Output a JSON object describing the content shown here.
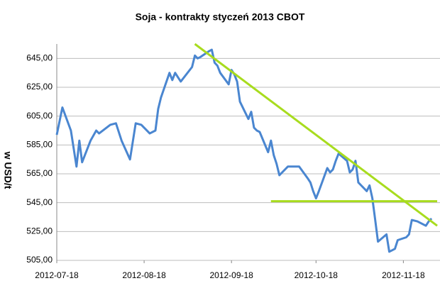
{
  "chart_data": {
    "type": "line",
    "title": "Soja - kontrakty styczeń 2013 CBOT",
    "y_label": "w USD/t",
    "x": [
      "2012-07-18",
      "2012-07-20",
      "2012-07-23",
      "2012-07-25",
      "2012-07-26",
      "2012-07-27",
      "2012-07-30",
      "2012-08-01",
      "2012-08-02",
      "2012-08-06",
      "2012-08-08",
      "2012-08-10",
      "2012-08-13",
      "2012-08-15",
      "2012-08-17",
      "2012-08-20",
      "2012-08-22",
      "2012-08-23",
      "2012-08-24",
      "2012-08-27",
      "2012-08-28",
      "2012-08-29",
      "2012-08-30",
      "2012-08-31",
      "2012-09-04",
      "2012-09-05",
      "2012-09-06",
      "2012-09-07",
      "2012-09-10",
      "2012-09-11",
      "2012-09-12",
      "2012-09-13",
      "2012-09-14",
      "2012-09-17",
      "2012-09-18",
      "2012-09-19",
      "2012-09-20",
      "2012-09-21",
      "2012-09-24",
      "2012-09-25",
      "2012-09-26",
      "2012-09-27",
      "2012-09-28",
      "2012-10-01",
      "2012-10-02",
      "2012-10-03",
      "2012-10-04",
      "2012-10-05",
      "2012-10-08",
      "2012-10-10",
      "2012-10-12",
      "2012-10-15",
      "2012-10-16",
      "2012-10-17",
      "2012-10-18",
      "2012-10-19",
      "2012-10-22",
      "2012-10-23",
      "2012-10-24",
      "2012-10-25",
      "2012-10-26",
      "2012-10-29",
      "2012-10-30",
      "2012-10-31",
      "2012-11-01",
      "2012-11-02",
      "2012-11-05",
      "2012-11-06",
      "2012-11-07",
      "2012-11-08",
      "2012-11-09",
      "2012-11-12",
      "2012-11-13",
      "2012-11-14",
      "2012-11-15",
      "2012-11-16",
      "2012-11-19",
      "2012-11-20",
      "2012-11-21",
      "2012-11-23",
      "2012-11-26",
      "2012-11-27",
      "2012-11-28"
    ],
    "series": [
      {
        "name": "Soja",
        "color": "#4a86d0",
        "values": [
          592,
          611,
          595,
          570,
          588,
          573,
          588,
          595,
          593,
          599,
          600,
          588,
          575,
          600,
          599,
          593,
          595,
          610,
          618,
          635,
          630,
          635,
          632,
          629,
          639,
          647,
          645,
          646,
          650,
          651,
          642,
          640,
          635,
          627,
          637,
          634,
          629,
          615,
          603,
          608,
          597,
          595,
          594,
          580,
          588,
          578,
          572,
          564,
          570,
          570,
          570,
          562,
          559,
          553,
          548,
          553,
          569,
          566,
          568,
          574,
          579,
          574,
          566,
          568,
          574,
          559,
          553,
          557,
          548,
          533,
          518,
          523,
          511,
          512,
          513,
          519,
          521,
          523,
          533,
          532,
          529,
          532,
          534
        ]
      }
    ],
    "trendlines": [
      {
        "color": "#a8dc1e",
        "x": [
          "2012-09-05",
          "2012-11-30"
        ],
        "y": [
          655,
          529
        ]
      },
      {
        "color": "#a8dc1e",
        "x": [
          "2012-10-02",
          "2012-11-30"
        ],
        "y": [
          546,
          546
        ]
      }
    ],
    "xlim": [
      "2012-07-18",
      "2012-12-01"
    ],
    "xticks": [
      "2012-07-18",
      "2012-08-18",
      "2012-09-18",
      "2012-10-18",
      "2012-11-18"
    ],
    "ylim": [
      505,
      655
    ],
    "yticks": [
      {
        "value": 505,
        "label": "505,00"
      },
      {
        "value": 525,
        "label": "525,00"
      },
      {
        "value": 545,
        "label": "545,00"
      },
      {
        "value": 565,
        "label": "565,00"
      },
      {
        "value": 585,
        "label": "585,00"
      },
      {
        "value": 605,
        "label": "605,00"
      },
      {
        "value": 625,
        "label": "625,00"
      },
      {
        "value": 645,
        "label": "645,00"
      }
    ],
    "grid": true
  }
}
